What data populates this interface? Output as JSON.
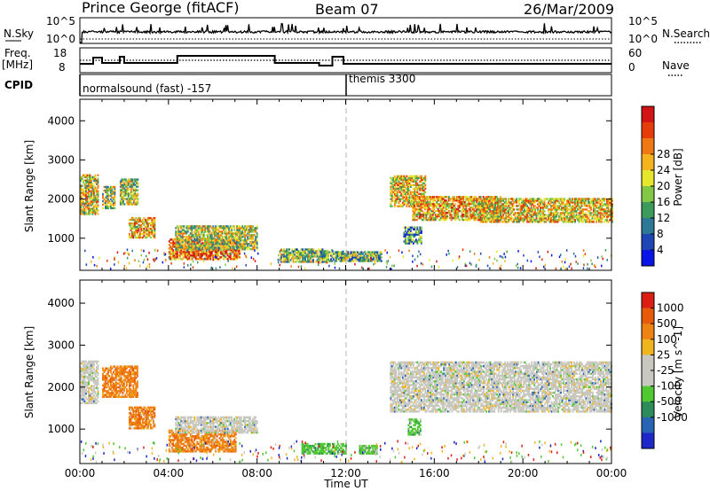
{
  "header": {
    "station": "Prince George (fitACF)",
    "beam": "Beam 07",
    "date": "26/Mar/2009"
  },
  "top_panels": {
    "nsky_label": "N.Sky",
    "nsky_ticks": [
      "10^5",
      "10^0"
    ],
    "nsearch_label": "N.Search",
    "nsearch_ticks": [
      "10^5",
      "10^0"
    ],
    "freq_label_line1": "Freq.",
    "freq_label_line2": "[MHz]",
    "freq_ticks": [
      "18",
      "8"
    ],
    "nave_label": "Nave",
    "nave_ticks": [
      "60",
      "0"
    ],
    "cpid_label": "CPID",
    "cpid_segments": [
      {
        "label": "normalsound (fast) -157",
        "start_hour": 0
      },
      {
        "label": "themis 3300",
        "start_hour": 12
      }
    ]
  },
  "chart_data": [
    {
      "type": "heatmap",
      "title": "",
      "xlabel": "",
      "ylabel": "Slant Range [km]",
      "xlim": [
        0,
        24
      ],
      "ylim": [
        180,
        4550
      ],
      "yticks": [
        "1000",
        "2000",
        "3000",
        "4000"
      ],
      "colorbar_label": "Power [dB]",
      "colorbar_ticks": [
        "4",
        "8",
        "12",
        "16",
        "20",
        "24",
        "28"
      ],
      "colorbar_colors": [
        "#0a14e6",
        "#1e46b4",
        "#2d7896",
        "#3c9b5a",
        "#82c846",
        "#e6e62d",
        "#f5b41e",
        "#f07814",
        "#e63c0a",
        "#d21414"
      ],
      "echo_regions": [
        {
          "t0": 0.0,
          "t1": 0.8,
          "r0": 1600,
          "r1": 2600,
          "level": 0.55
        },
        {
          "t0": 1.0,
          "t1": 1.6,
          "r0": 1750,
          "r1": 2300,
          "level": 0.5
        },
        {
          "t0": 1.8,
          "t1": 2.6,
          "r0": 1850,
          "r1": 2500,
          "level": 0.5
        },
        {
          "t0": 2.2,
          "t1": 3.4,
          "r0": 1000,
          "r1": 1500,
          "level": 0.65
        },
        {
          "t0": 4.0,
          "t1": 7.2,
          "r0": 450,
          "r1": 950,
          "level": 0.75
        },
        {
          "t0": 4.3,
          "t1": 8.0,
          "r0": 700,
          "r1": 1300,
          "level": 0.5
        },
        {
          "t0": 9.0,
          "t1": 11.2,
          "r0": 380,
          "r1": 700,
          "level": 0.45
        },
        {
          "t0": 11.0,
          "t1": 13.6,
          "r0": 400,
          "r1": 650,
          "level": 0.4
        },
        {
          "t0": 14.0,
          "t1": 15.6,
          "r0": 1800,
          "r1": 2600,
          "level": 0.6
        },
        {
          "t0": 15.0,
          "t1": 19.0,
          "r0": 1450,
          "r1": 2050,
          "level": 0.65
        },
        {
          "t0": 18.0,
          "t1": 24.0,
          "r0": 1400,
          "r1": 2000,
          "level": 0.6
        },
        {
          "t0": 14.6,
          "t1": 15.4,
          "r0": 850,
          "r1": 1300,
          "level": 0.3
        }
      ]
    },
    {
      "type": "heatmap",
      "title": "",
      "xlabel": "Time UT",
      "ylabel": "Slant Range [km]",
      "xlim": [
        0,
        24
      ],
      "ylim": [
        180,
        4550
      ],
      "xticks": [
        "00:00",
        "04:00",
        "08:00",
        "12:00",
        "16:00",
        "20:00",
        "00:00"
      ],
      "yticks": [
        "1000",
        "2000",
        "3000",
        "4000"
      ],
      "colorbar_label": "Velocity [m s^-1]",
      "colorbar_ticks": [
        "1000",
        "500",
        "100",
        "25",
        "-25",
        "-100",
        "-500",
        "-1000"
      ],
      "colorbar_colors": [
        "#1e28c8",
        "#2864b4",
        "#2d8c5a",
        "#50c832",
        "#c8c8c0",
        "#c8c8c0",
        "#f0b41e",
        "#f08214",
        "#e65a0a",
        "#dc1e14"
      ],
      "echo_regions": [
        {
          "t0": 0.0,
          "t1": 0.8,
          "r0": 1600,
          "r1": 2600,
          "kind": "grey"
        },
        {
          "t0": 1.0,
          "t1": 2.6,
          "r0": 1750,
          "r1": 2500,
          "kind": "orange"
        },
        {
          "t0": 2.2,
          "t1": 3.4,
          "r0": 1000,
          "r1": 1500,
          "kind": "orange"
        },
        {
          "t0": 4.0,
          "t1": 7.0,
          "r0": 450,
          "r1": 950,
          "kind": "orange"
        },
        {
          "t0": 4.3,
          "t1": 8.0,
          "r0": 900,
          "r1": 1300,
          "kind": "grey"
        },
        {
          "t0": 10.0,
          "t1": 12.0,
          "r0": 400,
          "r1": 650,
          "kind": "green"
        },
        {
          "t0": 12.6,
          "t1": 13.4,
          "r0": 400,
          "r1": 600,
          "kind": "green"
        },
        {
          "t0": 14.0,
          "t1": 24.0,
          "r0": 1400,
          "r1": 2600,
          "kind": "grey"
        },
        {
          "t0": 14.8,
          "t1": 15.4,
          "r0": 850,
          "r1": 1250,
          "kind": "green"
        }
      ]
    }
  ]
}
